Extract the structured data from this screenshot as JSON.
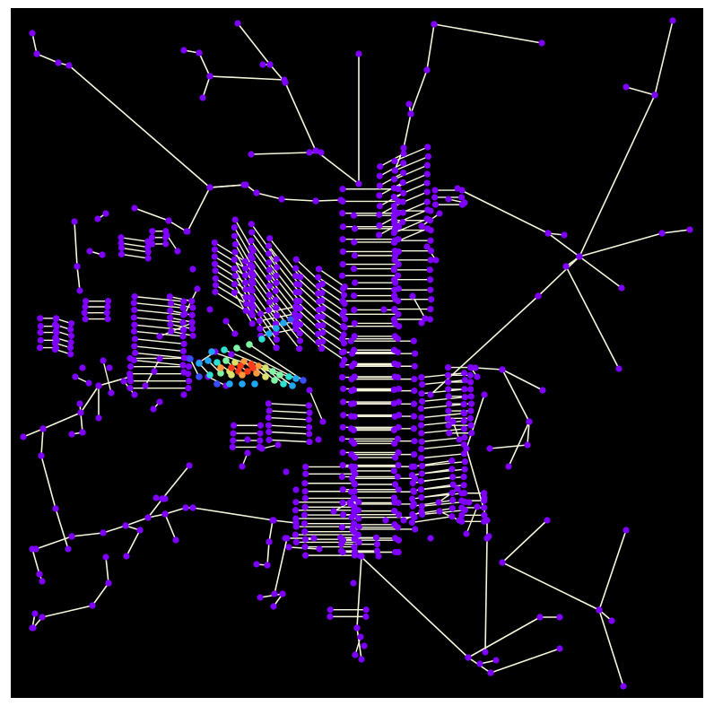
{
  "figure": {
    "background": "#000000",
    "edge_color": "#f5f5dc",
    "node_default_color": "#7f00ff",
    "colormap": "rainbow",
    "highlight_colors": [
      "#3a4cff",
      "#1fa6f2",
      "#2de0d0",
      "#7ff5a6",
      "#d9e36a",
      "#ff9a3c",
      "#ff3b1a"
    ]
  },
  "graph": {
    "type": "road-network",
    "description_level": "structure-only"
  }
}
